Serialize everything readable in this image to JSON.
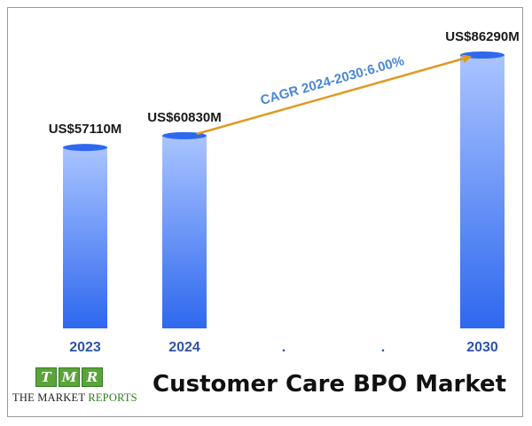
{
  "chart_data": {
    "type": "bar",
    "title": "Customer Care BPO Market",
    "categories": [
      "2023",
      "2024",
      ".",
      ".",
      "2030"
    ],
    "values": [
      57110,
      60830,
      null,
      null,
      86290
    ],
    "value_labels": [
      "US$57110M",
      "US$60830M",
      "",
      "",
      "US$86290M"
    ],
    "unit": "US$ M",
    "annotation": "CAGR 2024-2030:6.00%",
    "colors": {
      "bar_top": "#aac4ff",
      "bar_bottom": "#2e68ef",
      "arrow": "#e09a22",
      "tick_label": "#2f54a8",
      "annotation": "#4a86d4"
    }
  },
  "brand": {
    "letters": [
      "T",
      "M",
      "R"
    ],
    "name_part1": "THE MARKET",
    "name_part2": "REPORTS"
  }
}
